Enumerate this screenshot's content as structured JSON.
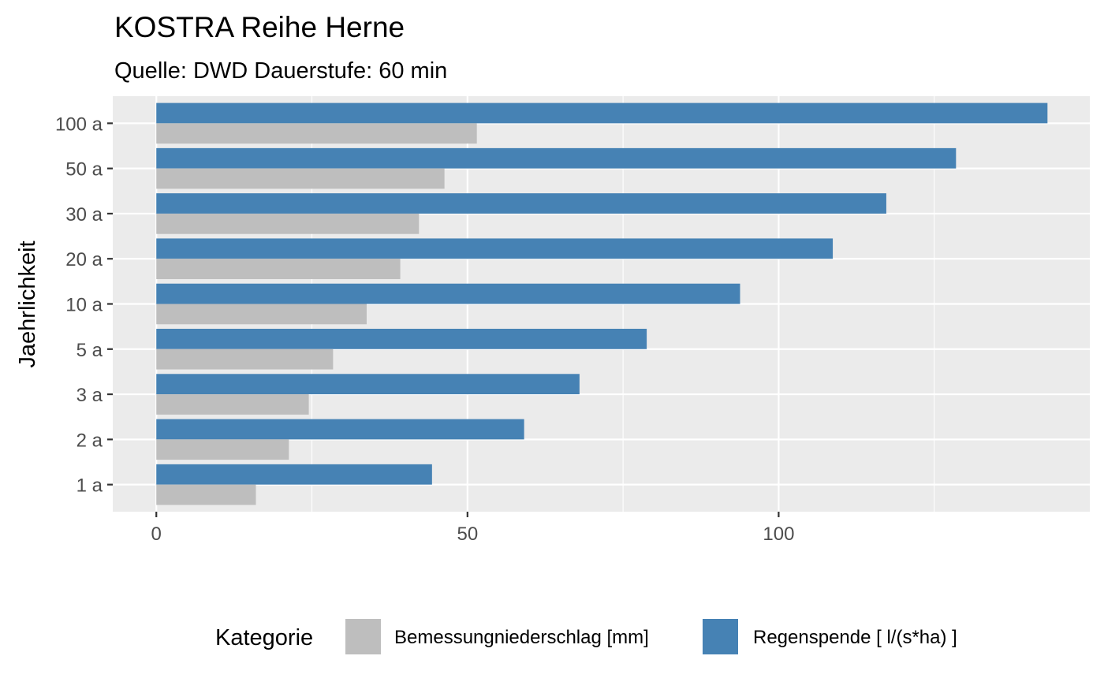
{
  "chart_data": {
    "type": "bar",
    "orientation": "horizontal",
    "title": "KOSTRA Reihe Herne",
    "subtitle": "Quelle: DWD Dauerstufe: 60 min",
    "xlabel": "",
    "ylabel": "Jaehrlichkeit",
    "categories": [
      "1 a",
      "2 a",
      "3 a",
      "5 a",
      "10 a",
      "20 a",
      "30 a",
      "50 a",
      "100 a"
    ],
    "xlim": [
      -7,
      150
    ],
    "x_ticks": [
      0,
      50,
      100
    ],
    "x_minor_ticks": [
      25,
      75,
      125
    ],
    "grid": true,
    "legend_title": "Kategorie",
    "legend_position": "bottom",
    "series": [
      {
        "name": "Bemessungniederschlag [mm]",
        "color": "#bebebe",
        "values": [
          16.0,
          21.3,
          24.5,
          28.4,
          33.8,
          39.2,
          42.2,
          46.3,
          51.5
        ]
      },
      {
        "name": "Regenspende [ l/(s*ha) ]",
        "color": "#4682b4",
        "values": [
          44.3,
          59.1,
          68.0,
          78.8,
          93.8,
          108.7,
          117.3,
          128.5,
          143.2
        ]
      }
    ]
  }
}
